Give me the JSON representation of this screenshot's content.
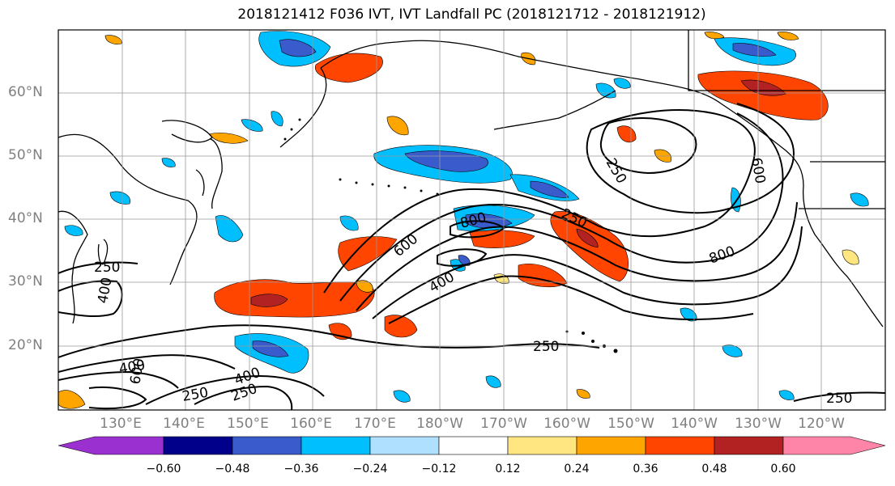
{
  "title": "2018121412 F036 IVT, IVT Landfall PC (2018121712 - 2018121912)",
  "lat_labels": [
    "60°N",
    "50°N",
    "40°N",
    "30°N",
    "20°N"
  ],
  "lon_labels": [
    "130°E",
    "140°E",
    "150°E",
    "160°E",
    "170°E",
    "180°W",
    "170°W",
    "160°W",
    "150°W",
    "140°W",
    "130°W",
    "120°W"
  ],
  "contour_labels": [
    "250",
    "250",
    "600",
    "800",
    "600",
    "400",
    "800",
    "250",
    "400",
    "600",
    "400",
    "250",
    "400",
    "250",
    "250",
    "250"
  ],
  "colorbar": {
    "colors": [
      "#9b30d0",
      "#00008b",
      "#3a5bcc",
      "#00bfff",
      "#b0e0ff",
      "#ffffff",
      "#ffe680",
      "#ffa500",
      "#ff4500",
      "#b22222",
      "#ff85a8"
    ],
    "tick_labels": [
      "−0.60",
      "−0.48",
      "−0.36",
      "−0.24",
      "−0.12",
      "0.12",
      "0.24",
      "0.36",
      "0.48",
      "0.60"
    ]
  }
}
